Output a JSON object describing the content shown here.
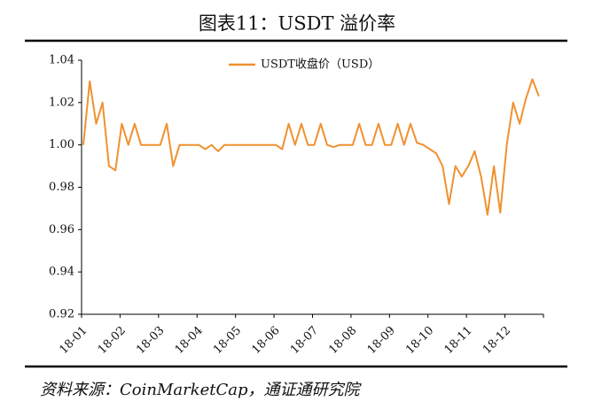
{
  "chart_data": {
    "type": "line",
    "title": "图表11：USDT 溢价率",
    "source": "资料来源：CoinMarketCap，通证通研究院",
    "categories": [
      "18-01",
      null,
      null,
      null,
      null,
      null,
      "18-02",
      null,
      null,
      null,
      null,
      null,
      "18-03",
      null,
      null,
      null,
      null,
      null,
      "18-04",
      null,
      null,
      null,
      null,
      null,
      "18-05",
      null,
      null,
      null,
      null,
      null,
      "18-06",
      null,
      null,
      null,
      null,
      null,
      "18-07",
      null,
      null,
      null,
      null,
      null,
      "18-08",
      null,
      null,
      null,
      null,
      null,
      "18-09",
      null,
      null,
      null,
      null,
      null,
      "18-10",
      null,
      null,
      null,
      null,
      null,
      "18-11",
      null,
      null,
      null,
      null,
      null,
      "18-12",
      null,
      null,
      null,
      null,
      null
    ],
    "series": [
      {
        "name": "USDT收盘价（USD）",
        "color": "#f0912e",
        "values": [
          1.0,
          1.03,
          1.01,
          1.02,
          0.99,
          0.988,
          1.01,
          1.0,
          1.01,
          1.0,
          1.0,
          1.0,
          1.0,
          1.01,
          0.99,
          1.0,
          1.0,
          1.0,
          1.0,
          0.998,
          1.0,
          0.997,
          1.0,
          1.0,
          1.0,
          1.0,
          1.0,
          1.0,
          1.0,
          1.0,
          1.0,
          0.998,
          1.01,
          1.0,
          1.01,
          1.0,
          1.0,
          1.01,
          1.0,
          0.999,
          1.0,
          1.0,
          1.0,
          1.01,
          1.0,
          1.0,
          1.01,
          1.0,
          1.0,
          1.01,
          1.0,
          1.01,
          1.001,
          1.0,
          0.998,
          0.996,
          0.99,
          0.972,
          0.99,
          0.985,
          0.99,
          0.997,
          0.985,
          0.967,
          0.99,
          0.968,
          1.0,
          1.02,
          1.01,
          1.022,
          1.031,
          1.023
        ]
      }
    ],
    "ylim": [
      0.92,
      1.04
    ],
    "yticks": [
      0.92,
      0.94,
      0.96,
      0.98,
      {
        "value": 1.0,
        "label": "1.00"
      },
      1.02,
      1.04
    ]
  }
}
